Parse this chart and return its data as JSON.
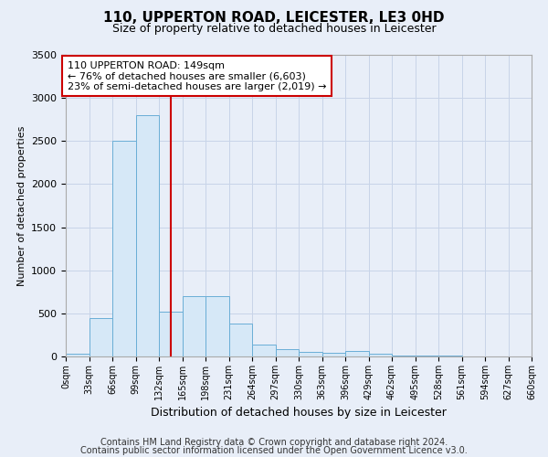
{
  "title1": "110, UPPERTON ROAD, LEICESTER, LE3 0HD",
  "title2": "Size of property relative to detached houses in Leicester",
  "xlabel": "Distribution of detached houses by size in Leicester",
  "ylabel": "Number of detached properties",
  "footnote1": "Contains HM Land Registry data © Crown copyright and database right 2024.",
  "footnote2": "Contains public sector information licensed under the Open Government Licence v3.0.",
  "annotation_line1": "110 UPPERTON ROAD: 149sqm",
  "annotation_line2": "← 76% of detached houses are smaller (6,603)",
  "annotation_line3": "23% of semi-detached houses are larger (2,019) →",
  "property_size": 149,
  "bin_edges": [
    0,
    33,
    66,
    99,
    132,
    165,
    198,
    231,
    264,
    297,
    330,
    363,
    396,
    429,
    462,
    495,
    528,
    561,
    594,
    627,
    660
  ],
  "bin_counts": [
    30,
    450,
    2500,
    2800,
    520,
    700,
    700,
    380,
    140,
    80,
    50,
    40,
    60,
    30,
    15,
    10,
    8,
    5,
    5,
    3
  ],
  "bar_facecolor": "#d6e8f7",
  "bar_edgecolor": "#6aaed6",
  "vline_color": "#cc0000",
  "annotation_box_edgecolor": "#cc0000",
  "annotation_box_facecolor": "#ffffff",
  "grid_color": "#c8d4e8",
  "bg_color": "#e8eef8",
  "plot_bg_color": "#e8eef8",
  "ylim": [
    0,
    3500
  ],
  "yticks": [
    0,
    500,
    1000,
    1500,
    2000,
    2500,
    3000,
    3500
  ],
  "title1_fontsize": 11,
  "title2_fontsize": 9,
  "ylabel_fontsize": 8,
  "xlabel_fontsize": 9,
  "tick_fontsize": 8,
  "xtick_fontsize": 7,
  "annotation_fontsize": 8,
  "footnote_fontsize": 7
}
